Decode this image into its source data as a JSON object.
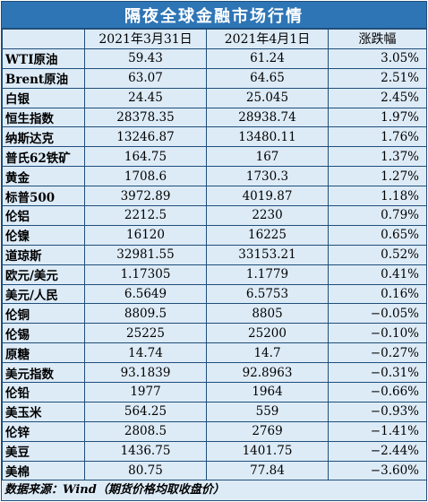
{
  "title": "隔夜全球金融市场行情",
  "headers": [
    "",
    "2021年3月31日",
    "2021年4月1日",
    "涨跌幅"
  ],
  "rows": [
    {
      "name": "WTI原油",
      "v1": "59.43",
      "v2": "61.24",
      "chg": "3.05%"
    },
    {
      "name": "Brent原油",
      "v1": "63.07",
      "v2": "64.65",
      "chg": "2.51%"
    },
    {
      "name": "白银",
      "v1": "24.45",
      "v2": "25.045",
      "chg": "2.45%"
    },
    {
      "name": "恒生指数",
      "v1": "28378.35",
      "v2": "28938.74",
      "chg": "1.97%"
    },
    {
      "name": "纳斯达克",
      "v1": "13246.87",
      "v2": "13480.11",
      "chg": "1.76%"
    },
    {
      "name": "普氏62铁矿",
      "v1": "164.75",
      "v2": "167",
      "chg": "1.37%"
    },
    {
      "name": "黄金",
      "v1": "1708.6",
      "v2": "1730.3",
      "chg": "1.27%"
    },
    {
      "name": "标普500",
      "v1": "3972.89",
      "v2": "4019.87",
      "chg": "1.18%"
    },
    {
      "name": "伦铝",
      "v1": "2212.5",
      "v2": "2230",
      "chg": "0.79%"
    },
    {
      "name": "伦镍",
      "v1": "16120",
      "v2": "16225",
      "chg": "0.65%"
    },
    {
      "name": "道琼斯",
      "v1": "32981.55",
      "v2": "33153.21",
      "chg": "0.52%"
    },
    {
      "name": "欧元/美元",
      "v1": "1.17305",
      "v2": "1.1779",
      "chg": "0.41%"
    },
    {
      "name": "美元/人民",
      "v1": "6.5649",
      "v2": "6.5753",
      "chg": "0.16%"
    },
    {
      "name": "伦铜",
      "v1": "8809.5",
      "v2": "8805",
      "chg": "−0.05%"
    },
    {
      "name": "伦锡",
      "v1": "25225",
      "v2": "25200",
      "chg": "−0.10%"
    },
    {
      "name": "原糖",
      "v1": "14.74",
      "v2": "14.7",
      "chg": "−0.27%"
    },
    {
      "name": "美元指数",
      "v1": "93.1839",
      "v2": "92.8963",
      "chg": "−0.31%"
    },
    {
      "name": "伦铅",
      "v1": "1977",
      "v2": "1964",
      "chg": "−0.66%"
    },
    {
      "name": "美玉米",
      "v1": "564.25",
      "v2": "559",
      "chg": "−0.93%"
    },
    {
      "name": "伦锌",
      "v1": "2808.5",
      "v2": "2769",
      "chg": "−1.41%"
    },
    {
      "name": "美豆",
      "v1": "1436.75",
      "v2": "1401.75",
      "chg": "−2.44%"
    },
    {
      "name": "美棉",
      "v1": "80.75",
      "v2": "77.84",
      "chg": "−3.60%"
    }
  ],
  "footer": "数据来源：Wind（期货价格均取收盘价）",
  "colors": {
    "title_bg": "#2E75B6",
    "body_bg": "#DDEBF7",
    "border": "#1F4E79"
  }
}
